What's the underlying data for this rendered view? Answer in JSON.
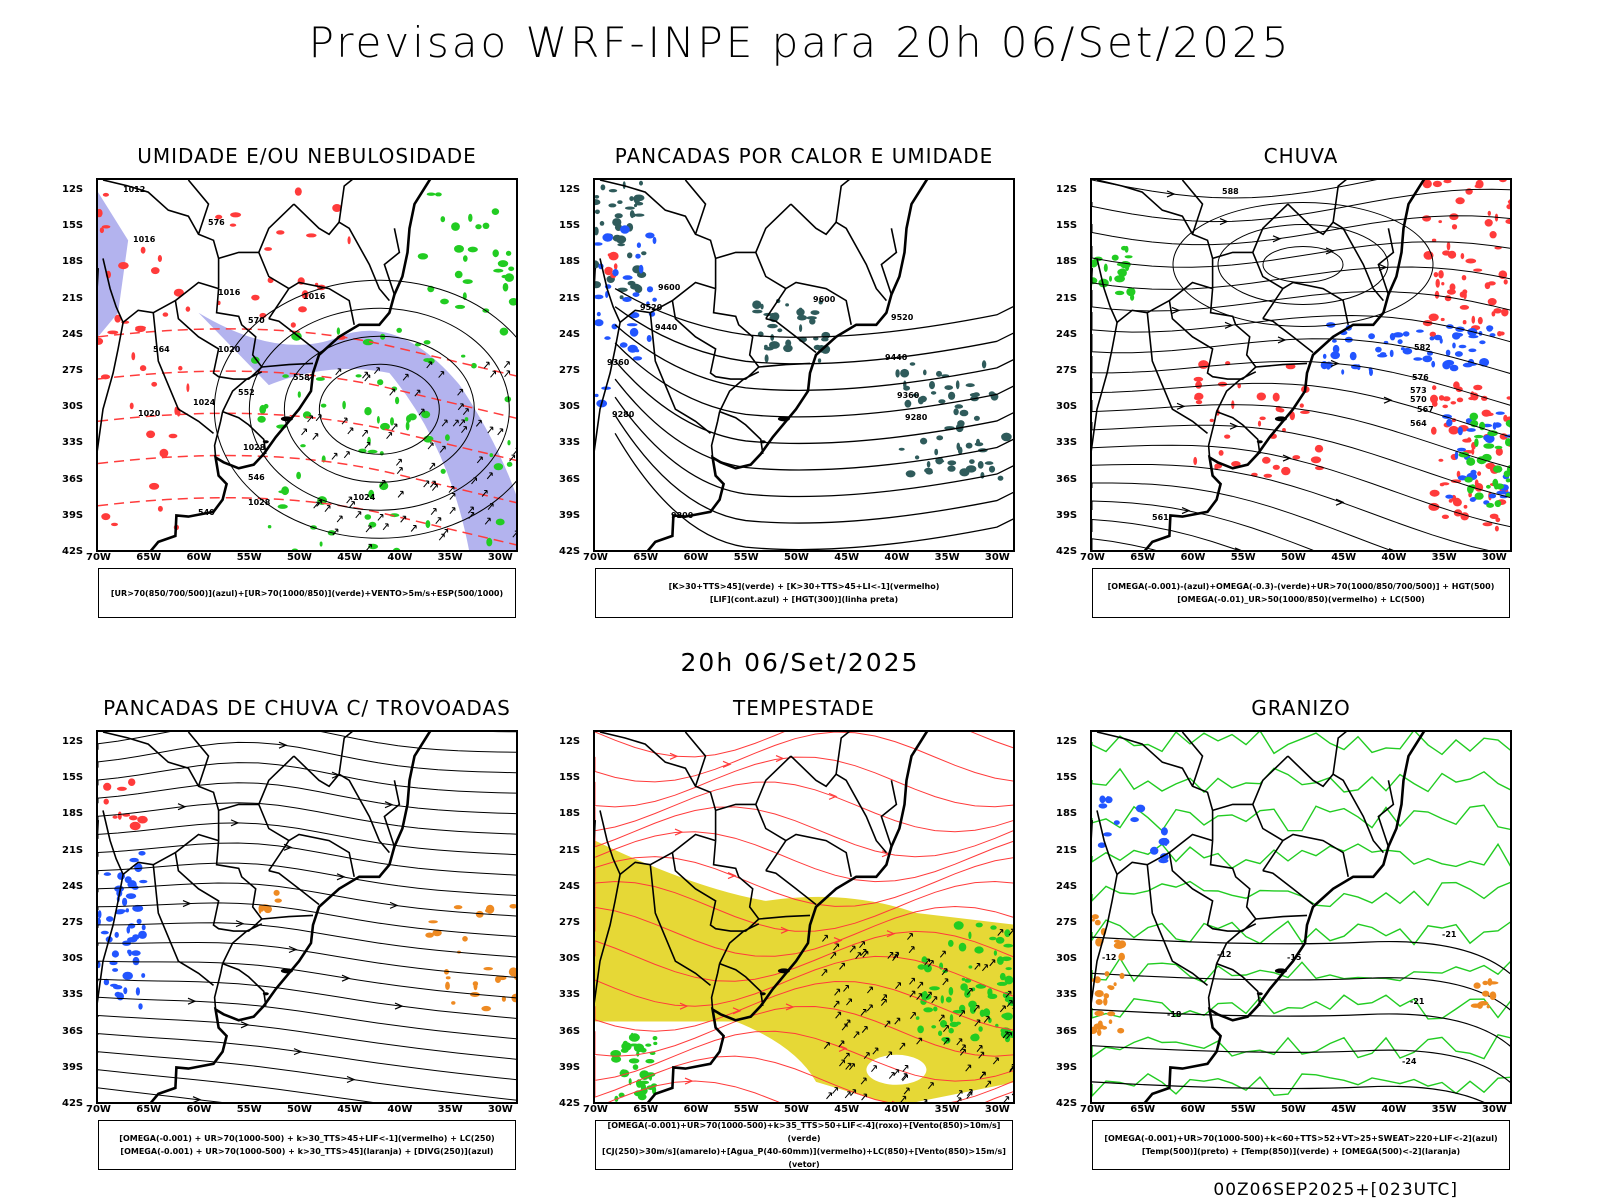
{
  "main_title": "Previsao WRF-INPE  para 20h 06/Set/2025",
  "mid_title": "20h 06/Set/2025",
  "footer": "00Z06SEP2025+[023UTC]",
  "axes": {
    "lat_labels": [
      "12S",
      "15S",
      "18S",
      "21S",
      "24S",
      "27S",
      "30S",
      "33S",
      "36S",
      "39S",
      "42S"
    ],
    "lon_labels": [
      "70W",
      "65W",
      "60W",
      "55W",
      "50W",
      "45W",
      "40W",
      "35W",
      "30W"
    ]
  },
  "colors": {
    "blue_shade": "#b3b3ee",
    "green": "#22cc22",
    "red": "#ff3b3b",
    "dark_teal": "#2f5b5b",
    "yellow": "#e6d836",
    "orange": "#ee8a22",
    "blue": "#2255ff"
  },
  "panels": [
    {
      "title": "UMIDADE E/OU NEBULOSIDADE",
      "legend": [
        "[UR>70(850/700/500)](azul)+[UR>70(1000/850)](verde)+VENTO>5m/s+ESP(500/1000)"
      ],
      "contour_labels": [
        "1012",
        "1016",
        "1016",
        "1020",
        "1024",
        "1028",
        "1028",
        "1024",
        "1020",
        "1016",
        "564",
        "558",
        "552",
        "546",
        "540",
        "576",
        "570"
      ]
    },
    {
      "title": "PANCADAS POR CALOR E UMIDADE",
      "legend": [
        "[K>30+TTS>45](verde) + [K>30+TTS>45+LI<-1](vermelho)",
        "[LIF](cont.azul) + [HGT(300)](linha preta)"
      ],
      "contour_labels": [
        "9600",
        "9520",
        "9440",
        "9360",
        "9280",
        "9200",
        "9600",
        "9520",
        "9440",
        "9360",
        "9280"
      ]
    },
    {
      "title": "CHUVA",
      "legend": [
        "[OMEGA(-0.001)-(azul)+OMEGA(-0.3)-(verde)+UR>70(1000/850/700/500)] + HGT(500)",
        "[OMEGA(-0.01)_UR>50(1000/850)(vermelho) + LC(500)"
      ],
      "contour_labels": [
        "588",
        "582",
        "576",
        "573",
        "570",
        "567",
        "564",
        "561"
      ]
    },
    {
      "title": "PANCADAS DE CHUVA C/ TROVOADAS",
      "legend": [
        "[OMEGA(-0.001) + UR>70(1000-500) + k>30_TTS>45+LIF<-1](vermelho) + LC(250)",
        "[OMEGA(-0.001) + UR>70(1000-500) + k>30_TTS>45](laranja) + [DIVG(250)](azul)"
      ],
      "contour_labels": []
    },
    {
      "title": "TEMPESTADE",
      "legend": [
        "[OMEGA(-0.001)+UR>70(1000-500)+k>35_TTS>50+LIF<-4](roxo)+[Vento(850)>10m/s](verde)",
        "[CJ(250)>30m/s](amarelo)+[Agua_P(40-60mm)](vermelho)+LC(850)+[Vento(850)>15m/s](vetor)"
      ],
      "contour_labels": []
    },
    {
      "title": "GRANIZO",
      "legend": [
        "[OMEGA(-0.001)+UR>70(1000-500)+k<60+TTS>52+VT>25+SWEAT>220+LIF<-2](azul)",
        "[Temp(500)](preto) + [Temp(850)](verde) + [OMEGA(500)<-2](laranja)"
      ],
      "contour_labels": [
        "-12",
        "-15",
        "-18",
        "-21",
        "-24",
        "-12",
        "-21"
      ]
    }
  ]
}
